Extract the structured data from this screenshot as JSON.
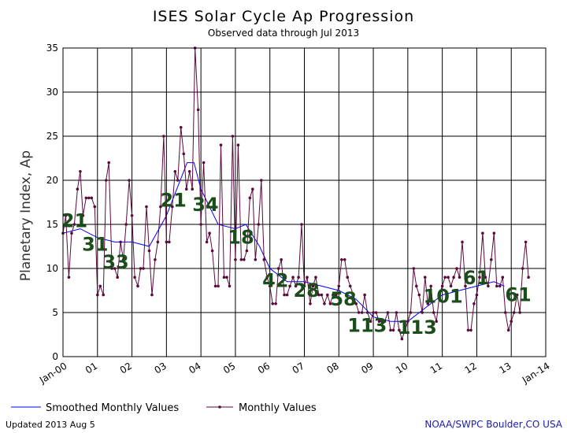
{
  "chart_data": {
    "type": "line",
    "title": "ISES Solar Cycle Ap Progression",
    "subtitle": "Observed data through Jul 2013",
    "ylabel": "Planetary Index, Ap",
    "xlabel": "",
    "xlim": [
      2000.0,
      2014.0
    ],
    "ylim": [
      0,
      35
    ],
    "y_ticks": [
      0,
      5,
      10,
      15,
      20,
      25,
      30,
      35
    ],
    "x_ticks": [
      {
        "x": 2000,
        "label": "Jan-00"
      },
      {
        "x": 2001,
        "label": "01"
      },
      {
        "x": 2002,
        "label": "02"
      },
      {
        "x": 2003,
        "label": "03"
      },
      {
        "x": 2004,
        "label": "04"
      },
      {
        "x": 2005,
        "label": "05"
      },
      {
        "x": 2006,
        "label": "06"
      },
      {
        "x": 2007,
        "label": "07"
      },
      {
        "x": 2008,
        "label": "08"
      },
      {
        "x": 2009,
        "label": "09"
      },
      {
        "x": 2010,
        "label": "10"
      },
      {
        "x": 2011,
        "label": "11"
      },
      {
        "x": 2012,
        "label": "12"
      },
      {
        "x": 2013,
        "label": "13"
      },
      {
        "x": 2014,
        "label": "Jan-14"
      }
    ],
    "grid": true,
    "series": [
      {
        "name": "Smoothed Monthly Values",
        "color": "#0000ff",
        "marker": false,
        "points": [
          [
            2000.0,
            14
          ],
          [
            2000.5,
            14.5
          ],
          [
            2001.0,
            13.5
          ],
          [
            2001.5,
            13
          ],
          [
            2002.0,
            13
          ],
          [
            2002.5,
            12.5
          ],
          [
            2003.0,
            16
          ],
          [
            2003.3,
            19
          ],
          [
            2003.6,
            22
          ],
          [
            2003.8,
            22
          ],
          [
            2004.0,
            19
          ],
          [
            2004.5,
            15
          ],
          [
            2005.0,
            14.5
          ],
          [
            2005.3,
            15
          ],
          [
            2005.7,
            12.5
          ],
          [
            2006.0,
            10
          ],
          [
            2006.5,
            8.5
          ],
          [
            2007.0,
            8.5
          ],
          [
            2007.5,
            8
          ],
          [
            2008.0,
            7.5
          ],
          [
            2008.5,
            6.5
          ],
          [
            2009.0,
            4.5
          ],
          [
            2009.5,
            4
          ],
          [
            2010.0,
            4
          ],
          [
            2010.5,
            5.5
          ],
          [
            2011.0,
            7
          ],
          [
            2011.5,
            7.5
          ],
          [
            2012.0,
            8
          ],
          [
            2012.5,
            8.5
          ],
          [
            2012.8,
            8
          ]
        ]
      },
      {
        "name": "Monthly Values",
        "color": "#5a0a3c",
        "marker": true,
        "points": [
          [
            2000.0,
            14
          ],
          [
            2000.08,
            16
          ],
          [
            2000.17,
            9
          ],
          [
            2000.25,
            14
          ],
          [
            2000.33,
            15
          ],
          [
            2000.42,
            19
          ],
          [
            2000.5,
            21
          ],
          [
            2000.58,
            16
          ],
          [
            2000.67,
            18
          ],
          [
            2000.75,
            18
          ],
          [
            2000.83,
            18
          ],
          [
            2000.92,
            17
          ],
          [
            2001.0,
            7
          ],
          [
            2001.08,
            8
          ],
          [
            2001.17,
            7
          ],
          [
            2001.25,
            20
          ],
          [
            2001.33,
            22
          ],
          [
            2001.42,
            10
          ],
          [
            2001.5,
            10
          ],
          [
            2001.58,
            9
          ],
          [
            2001.67,
            13
          ],
          [
            2001.75,
            11
          ],
          [
            2001.83,
            15
          ],
          [
            2001.92,
            20
          ],
          [
            2002.0,
            16
          ],
          [
            2002.08,
            9
          ],
          [
            2002.17,
            8
          ],
          [
            2002.25,
            10
          ],
          [
            2002.33,
            10
          ],
          [
            2002.42,
            17
          ],
          [
            2002.5,
            12
          ],
          [
            2002.58,
            7
          ],
          [
            2002.67,
            11
          ],
          [
            2002.75,
            13
          ],
          [
            2002.83,
            17
          ],
          [
            2002.92,
            25
          ],
          [
            2003.0,
            13
          ],
          [
            2003.08,
            13
          ],
          [
            2003.17,
            17
          ],
          [
            2003.25,
            21
          ],
          [
            2003.33,
            20
          ],
          [
            2003.42,
            26
          ],
          [
            2003.5,
            23
          ],
          [
            2003.58,
            19
          ],
          [
            2003.67,
            21
          ],
          [
            2003.75,
            19
          ],
          [
            2003.83,
            35
          ],
          [
            2003.92,
            28
          ],
          [
            2004.0,
            15
          ],
          [
            2004.08,
            22
          ],
          [
            2004.17,
            13
          ],
          [
            2004.25,
            14
          ],
          [
            2004.33,
            12
          ],
          [
            2004.42,
            8
          ],
          [
            2004.5,
            8
          ],
          [
            2004.58,
            24
          ],
          [
            2004.67,
            9
          ],
          [
            2004.75,
            9
          ],
          [
            2004.83,
            8
          ],
          [
            2004.92,
            25
          ],
          [
            2005.0,
            11
          ],
          [
            2005.08,
            24
          ],
          [
            2005.17,
            11
          ],
          [
            2005.25,
            11
          ],
          [
            2005.33,
            12
          ],
          [
            2005.42,
            18
          ],
          [
            2005.5,
            19
          ],
          [
            2005.58,
            11
          ],
          [
            2005.67,
            15
          ],
          [
            2005.75,
            20
          ],
          [
            2005.83,
            11
          ],
          [
            2005.92,
            9
          ],
          [
            2006.0,
            8
          ],
          [
            2006.08,
            6
          ],
          [
            2006.17,
            6
          ],
          [
            2006.25,
            10
          ],
          [
            2006.33,
            11
          ],
          [
            2006.42,
            7
          ],
          [
            2006.5,
            7
          ],
          [
            2006.58,
            8
          ],
          [
            2006.67,
            9
          ],
          [
            2006.75,
            8
          ],
          [
            2006.83,
            9
          ],
          [
            2006.92,
            15
          ],
          [
            2007.0,
            8
          ],
          [
            2007.08,
            9
          ],
          [
            2007.17,
            6
          ],
          [
            2007.25,
            8
          ],
          [
            2007.33,
            9
          ],
          [
            2007.42,
            7
          ],
          [
            2007.5,
            7
          ],
          [
            2007.58,
            6
          ],
          [
            2007.67,
            7
          ],
          [
            2007.75,
            6
          ],
          [
            2007.83,
            7
          ],
          [
            2007.92,
            7
          ],
          [
            2008.0,
            8
          ],
          [
            2008.08,
            11
          ],
          [
            2008.17,
            11
          ],
          [
            2008.25,
            9
          ],
          [
            2008.33,
            8
          ],
          [
            2008.42,
            7
          ],
          [
            2008.5,
            6
          ],
          [
            2008.58,
            5
          ],
          [
            2008.67,
            5
          ],
          [
            2008.75,
            7
          ],
          [
            2008.83,
            5
          ],
          [
            2008.92,
            4
          ],
          [
            2009.0,
            5
          ],
          [
            2009.08,
            5
          ],
          [
            2009.17,
            4
          ],
          [
            2009.25,
            4
          ],
          [
            2009.33,
            4
          ],
          [
            2009.42,
            5
          ],
          [
            2009.5,
            3
          ],
          [
            2009.58,
            3
          ],
          [
            2009.67,
            5
          ],
          [
            2009.75,
            3
          ],
          [
            2009.83,
            2
          ],
          [
            2009.92,
            3
          ],
          [
            2010.0,
            4
          ],
          [
            2010.08,
            5
          ],
          [
            2010.17,
            10
          ],
          [
            2010.25,
            8
          ],
          [
            2010.33,
            7
          ],
          [
            2010.42,
            5
          ],
          [
            2010.5,
            9
          ],
          [
            2010.58,
            6
          ],
          [
            2010.67,
            8
          ],
          [
            2010.75,
            5
          ],
          [
            2010.83,
            4
          ],
          [
            2010.92,
            7
          ],
          [
            2011.0,
            8
          ],
          [
            2011.08,
            9
          ],
          [
            2011.17,
            9
          ],
          [
            2011.25,
            8
          ],
          [
            2011.33,
            9
          ],
          [
            2011.42,
            10
          ],
          [
            2011.5,
            9
          ],
          [
            2011.58,
            13
          ],
          [
            2011.67,
            8
          ],
          [
            2011.75,
            3
          ],
          [
            2011.83,
            3
          ],
          [
            2011.92,
            6
          ],
          [
            2012.0,
            7
          ],
          [
            2012.08,
            9
          ],
          [
            2012.17,
            14
          ],
          [
            2012.25,
            9
          ],
          [
            2012.33,
            8
          ],
          [
            2012.42,
            11
          ],
          [
            2012.5,
            14
          ],
          [
            2012.58,
            8
          ],
          [
            2012.67,
            8
          ],
          [
            2012.75,
            9
          ],
          [
            2012.83,
            5
          ],
          [
            2012.92,
            3
          ],
          [
            2013.0,
            4
          ],
          [
            2013.08,
            5
          ],
          [
            2013.17,
            7
          ],
          [
            2013.25,
            5
          ],
          [
            2013.33,
            10
          ],
          [
            2013.42,
            13
          ],
          [
            2013.5,
            9
          ]
        ]
      }
    ],
    "annotations": [
      {
        "x": 1999.95,
        "y": 14.7,
        "text": "21"
      },
      {
        "x": 2000.55,
        "y": 12.0,
        "text": "31"
      },
      {
        "x": 2001.15,
        "y": 10.0,
        "text": "33"
      },
      {
        "x": 2002.82,
        "y": 17.0,
        "text": "21"
      },
      {
        "x": 2003.75,
        "y": 16.5,
        "text": "34"
      },
      {
        "x": 2004.78,
        "y": 12.8,
        "text": "18"
      },
      {
        "x": 2005.78,
        "y": 7.9,
        "text": "42"
      },
      {
        "x": 2006.68,
        "y": 6.8,
        "text": "28"
      },
      {
        "x": 2007.75,
        "y": 5.8,
        "text": "58"
      },
      {
        "x": 2008.25,
        "y": 2.8,
        "text": "113"
      },
      {
        "x": 2009.7,
        "y": 2.6,
        "text": "113"
      },
      {
        "x": 2010.45,
        "y": 6.1,
        "text": "101"
      },
      {
        "x": 2011.6,
        "y": 8.2,
        "text": "61"
      },
      {
        "x": 2012.82,
        "y": 6.3,
        "text": "61"
      }
    ]
  },
  "legend": {
    "smoothed_label": "Smoothed Monthly Values",
    "monthly_label": "Monthly Values"
  },
  "footer": {
    "updated": "Updated 2013 Aug  5",
    "credit": "NOAA/SWPC Boulder,CO USA",
    "credit_color": "#1a1ab0"
  }
}
